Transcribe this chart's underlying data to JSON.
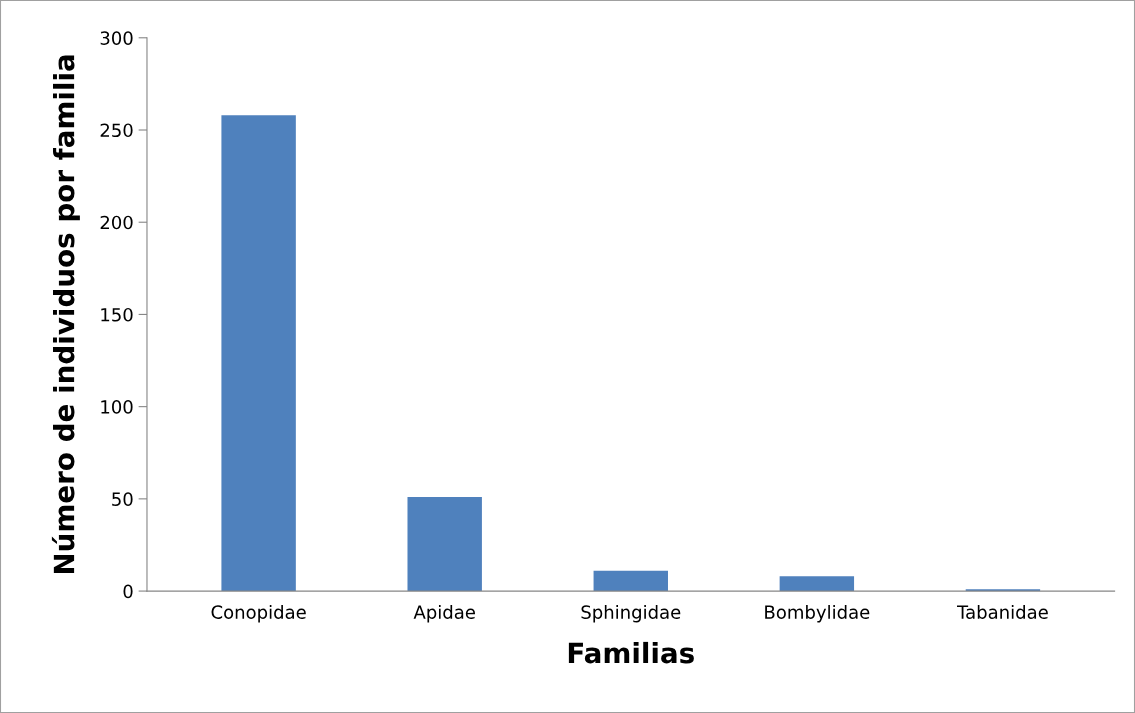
{
  "chart_data": {
    "type": "bar",
    "xlabel": "Familias",
    "ylabel": "Número de individuos por familia",
    "categories": [
      "Conopidae",
      "Apidae",
      "Sphingidae",
      "Bombylidae",
      "Tabanidae"
    ],
    "values": [
      258,
      51,
      11,
      8,
      1
    ],
    "color": "#4f81bd",
    "ylim": [
      0,
      300
    ],
    "yticks": [
      0,
      50,
      100,
      150,
      200,
      250,
      300
    ],
    "grid": false,
    "legend": false
  }
}
